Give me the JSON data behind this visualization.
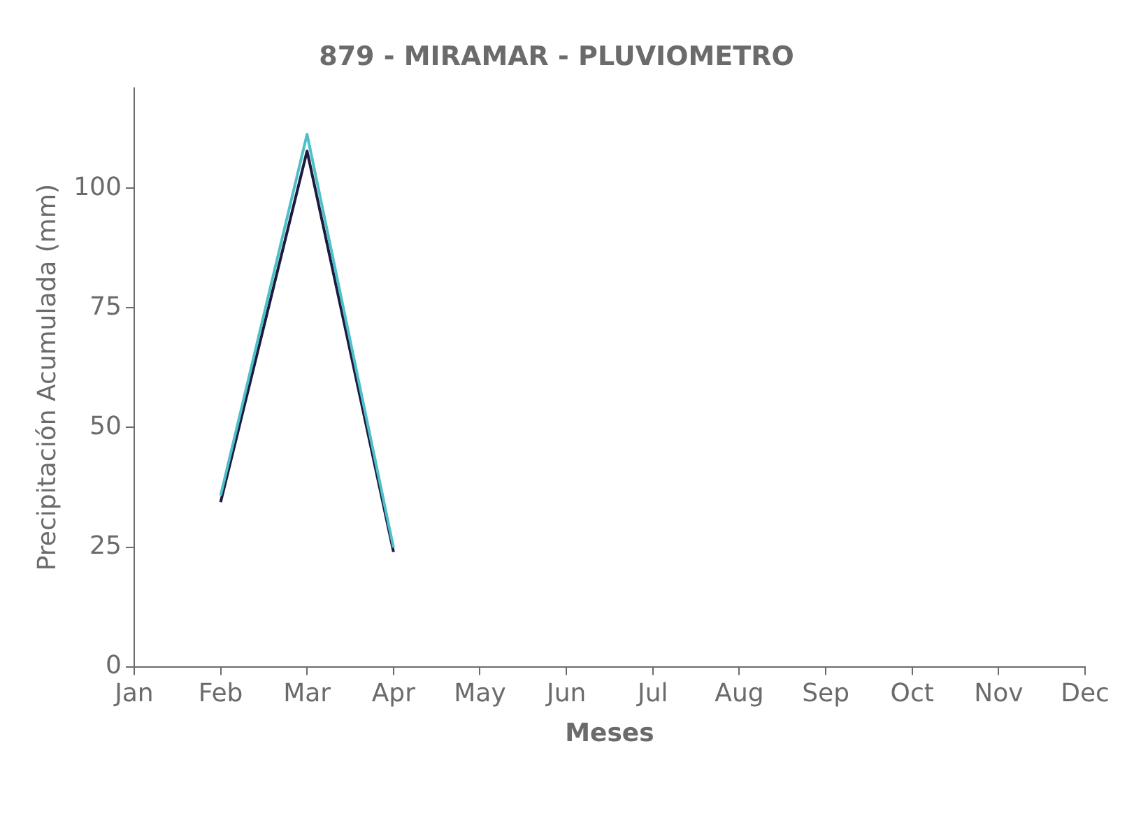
{
  "chart_data": {
    "type": "line",
    "title": "879 - MIRAMAR - PLUVIOMETRO",
    "xlabel": "Meses",
    "ylabel": "Precipitación Acumulada (mm)",
    "categories": [
      "Jan",
      "Feb",
      "Mar",
      "Apr",
      "May",
      "Jun",
      "Jul",
      "Aug",
      "Sep",
      "Oct",
      "Nov",
      "Dec"
    ],
    "series": [
      {
        "color": "#4fc0c8",
        "values": [
          null,
          35.8,
          111.3,
          24.9,
          null,
          null,
          null,
          null,
          null,
          null,
          null,
          null
        ]
      },
      {
        "color": "#1c1a3e",
        "values": [
          null,
          34.4,
          107.8,
          24.0,
          null,
          null,
          null,
          null,
          null,
          null,
          null,
          null
        ]
      }
    ],
    "ylim": [
      0,
      121
    ],
    "yticks": [
      0,
      25,
      50,
      75,
      100
    ],
    "grid": false,
    "legend": false,
    "marker": "none",
    "line_style": "solid"
  }
}
